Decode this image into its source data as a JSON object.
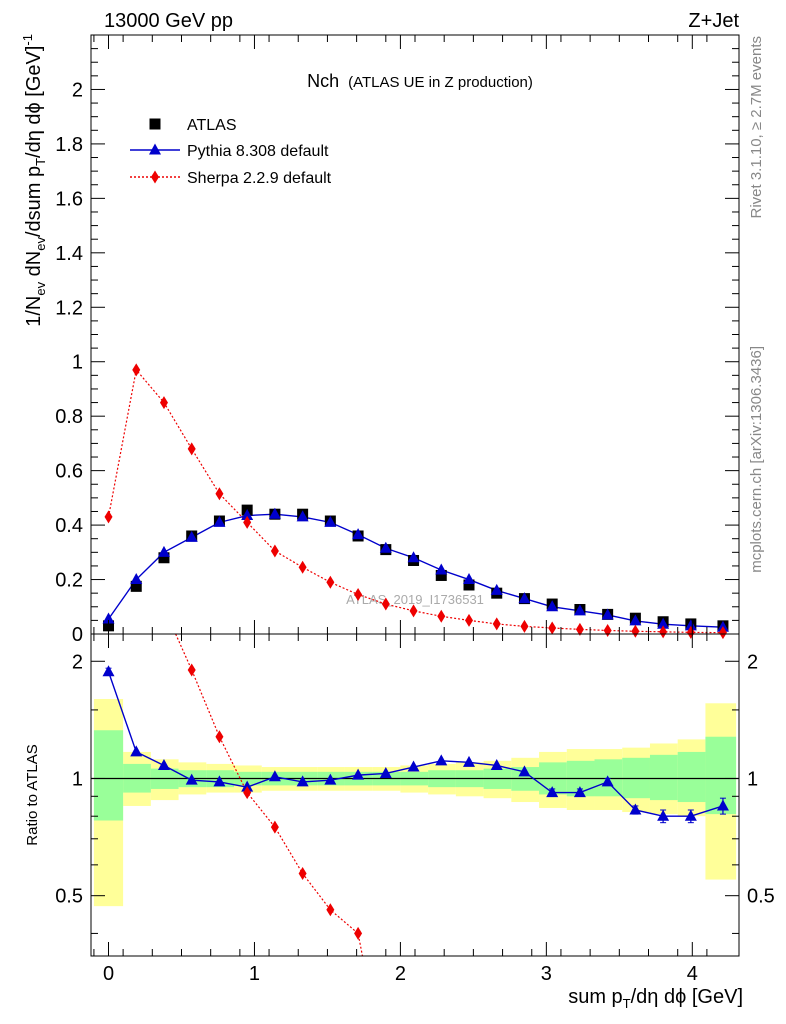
{
  "header": {
    "left": "13000 GeV pp",
    "right": "Z+Jet"
  },
  "side_labels": {
    "rivet": "Rivet 3.1.10, ≥ 2.7M events",
    "mcplots": "mcplots.cern.ch [arXiv:1306.3436]"
  },
  "chart_data": [
    {
      "type": "scatter",
      "panel": "main",
      "title_main": "Nch",
      "title_sub": "(ATLAS UE in Z production)",
      "ylabel": "1/N_ev dN_ev/dsum p_T/dη dϕ [GeV]^-1",
      "watermark": "ATLAS_2019_I1736531",
      "xlim": [
        -0.12,
        4.32
      ],
      "ylim": [
        0,
        2.2
      ],
      "yticks": [
        0,
        0.2,
        0.4,
        0.6,
        0.8,
        1,
        1.2,
        1.4,
        1.6,
        1.8,
        2
      ],
      "ytick_labels": [
        "0",
        "0.2",
        "0.4",
        "0.6",
        "0.8",
        "1",
        "1.2",
        "1.4",
        "1.6",
        "1.8",
        "2"
      ],
      "legend_position": "top-left",
      "x": [
        0,
        0.19,
        0.38,
        0.57,
        0.76,
        0.95,
        1.14,
        1.33,
        1.52,
        1.71,
        1.9,
        2.09,
        2.28,
        2.47,
        2.66,
        2.85,
        3.04,
        3.23,
        3.42,
        3.61,
        3.8,
        3.99,
        4.21
      ],
      "series": [
        {
          "name": "ATLAS",
          "color": "#000000",
          "marker": "square",
          "values": [
            0.03,
            0.175,
            0.28,
            0.36,
            0.415,
            0.455,
            0.44,
            0.44,
            0.415,
            0.36,
            0.31,
            0.27,
            0.215,
            0.18,
            0.15,
            0.13,
            0.11,
            0.09,
            0.072,
            0.058,
            0.045,
            0.037,
            0.03
          ]
        },
        {
          "name": "Pythia 8.308 default",
          "color": "#0000cc",
          "marker": "triangle",
          "values": [
            0.055,
            0.2,
            0.3,
            0.355,
            0.41,
            0.435,
            0.44,
            0.43,
            0.41,
            0.365,
            0.315,
            0.28,
            0.235,
            0.2,
            0.16,
            0.13,
            0.1,
            0.085,
            0.07,
            0.048,
            0.036,
            0.03,
            0.025
          ]
        },
        {
          "name": "Sherpa 2.2.9 default",
          "color": "#ee0000",
          "marker": "diamond",
          "values": [
            0.43,
            0.97,
            0.85,
            0.68,
            0.515,
            0.41,
            0.305,
            0.245,
            0.19,
            0.145,
            0.11,
            0.085,
            0.065,
            0.05,
            0.037,
            0.028,
            0.022,
            0.017,
            0.013,
            0.01,
            0.008,
            0.006,
            0.005
          ]
        }
      ]
    },
    {
      "type": "scatter",
      "panel": "ratio",
      "ylabel": "Ratio to ATLAS",
      "xlabel": "sum p_T/dη dϕ [GeV]",
      "xlim": [
        -0.12,
        4.32
      ],
      "ylim": [
        0.35,
        2.35
      ],
      "yscale": "log",
      "yticks": [
        0.5,
        1,
        2
      ],
      "ytick_labels": [
        "0.5",
        "1",
        "2"
      ],
      "xticks": [
        0,
        1,
        2,
        3,
        4
      ],
      "xtick_labels": [
        "0",
        "1",
        "2",
        "3",
        "4"
      ],
      "x": [
        0,
        0.19,
        0.38,
        0.57,
        0.76,
        0.95,
        1.14,
        1.33,
        1.52,
        1.71,
        1.9,
        2.09,
        2.28,
        2.47,
        2.66,
        2.85,
        3.04,
        3.23,
        3.42,
        3.61,
        3.8,
        3.99,
        4.21
      ],
      "bin_edges": [
        -0.1,
        0.1,
        0.29,
        0.48,
        0.67,
        0.86,
        1.05,
        1.24,
        1.43,
        1.62,
        1.81,
        2.0,
        2.19,
        2.38,
        2.57,
        2.76,
        2.95,
        3.14,
        3.33,
        3.52,
        3.71,
        3.9,
        4.09,
        4.3
      ],
      "band_outer": {
        "color": "#ffff99",
        "low": [
          0.47,
          0.85,
          0.88,
          0.91,
          0.92,
          0.92,
          0.93,
          0.93,
          0.93,
          0.93,
          0.93,
          0.92,
          0.91,
          0.9,
          0.89,
          0.87,
          0.84,
          0.83,
          0.83,
          0.82,
          0.81,
          0.8,
          0.55
        ],
        "high": [
          1.6,
          1.17,
          1.12,
          1.1,
          1.09,
          1.08,
          1.07,
          1.07,
          1.07,
          1.07,
          1.07,
          1.08,
          1.09,
          1.1,
          1.11,
          1.13,
          1.17,
          1.19,
          1.19,
          1.2,
          1.23,
          1.26,
          1.56
        ]
      },
      "band_inner": {
        "color": "#99ff99",
        "low": [
          0.78,
          0.92,
          0.94,
          0.95,
          0.95,
          0.96,
          0.96,
          0.96,
          0.96,
          0.96,
          0.96,
          0.96,
          0.95,
          0.95,
          0.94,
          0.93,
          0.91,
          0.9,
          0.9,
          0.89,
          0.88,
          0.87,
          0.81
        ],
        "high": [
          1.33,
          1.09,
          1.06,
          1.05,
          1.05,
          1.04,
          1.04,
          1.04,
          1.04,
          1.04,
          1.04,
          1.04,
          1.05,
          1.05,
          1.06,
          1.07,
          1.1,
          1.11,
          1.12,
          1.13,
          1.15,
          1.17,
          1.28
        ]
      },
      "series": [
        {
          "name": "Pythia 8.308 default",
          "color": "#0000cc",
          "marker": "triangle",
          "values": [
            1.88,
            1.17,
            1.08,
            0.99,
            0.98,
            0.95,
            1.01,
            0.98,
            0.99,
            1.02,
            1.03,
            1.07,
            1.11,
            1.1,
            1.08,
            1.04,
            0.92,
            0.92,
            0.98,
            0.83,
            0.8,
            0.8,
            0.85
          ],
          "errors": [
            0.04,
            0.01,
            0.01,
            0.01,
            0.01,
            0.01,
            0.01,
            0.01,
            0.01,
            0.01,
            0.01,
            0.01,
            0.01,
            0.01,
            0.01,
            0.01,
            0.02,
            0.02,
            0.02,
            0.02,
            0.03,
            0.03,
            0.04
          ]
        },
        {
          "name": "Sherpa 2.2.9 default",
          "color": "#ee0000",
          "marker": "diamond",
          "values": [
            null,
            null,
            null,
            1.9,
            1.28,
            0.92,
            0.75,
            0.57,
            0.46,
            0.4,
            null,
            null,
            null,
            null,
            null,
            null,
            null,
            null,
            null,
            null,
            null,
            null,
            null
          ]
        }
      ]
    }
  ]
}
